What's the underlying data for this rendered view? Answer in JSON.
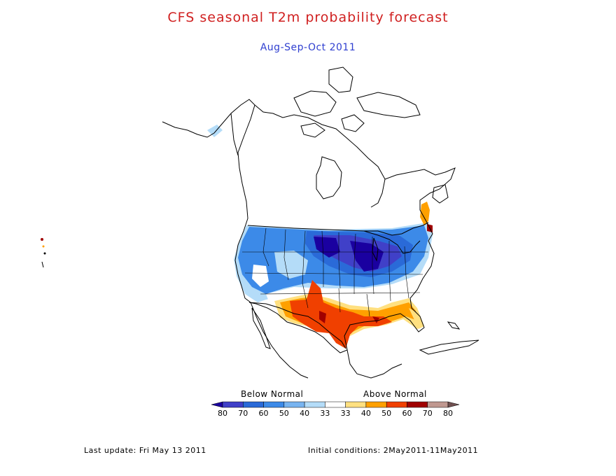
{
  "header": {
    "title": "CFS seasonal T2m probability forecast",
    "subtitle": "Aug-Sep-Oct 2011"
  },
  "legend": {
    "below_label": "Below Normal",
    "above_label": "Above Normal",
    "ticks": [
      "80",
      "70",
      "60",
      "50",
      "40",
      "33",
      "33",
      "40",
      "50",
      "60",
      "70",
      "80"
    ],
    "colors": [
      "#1a00a0",
      "#4040c8",
      "#2a6ad8",
      "#3c8ae8",
      "#78b4f0",
      "#b4dcf8",
      "#ffffff",
      "#ffe080",
      "#ffa000",
      "#f04000",
      "#a00000",
      "#c09890",
      "#705050"
    ]
  },
  "footer": {
    "last_update": "Last update: Fri May 13 2011",
    "initial_conditions": "Initial conditions: 2May2011-11May2011"
  }
}
